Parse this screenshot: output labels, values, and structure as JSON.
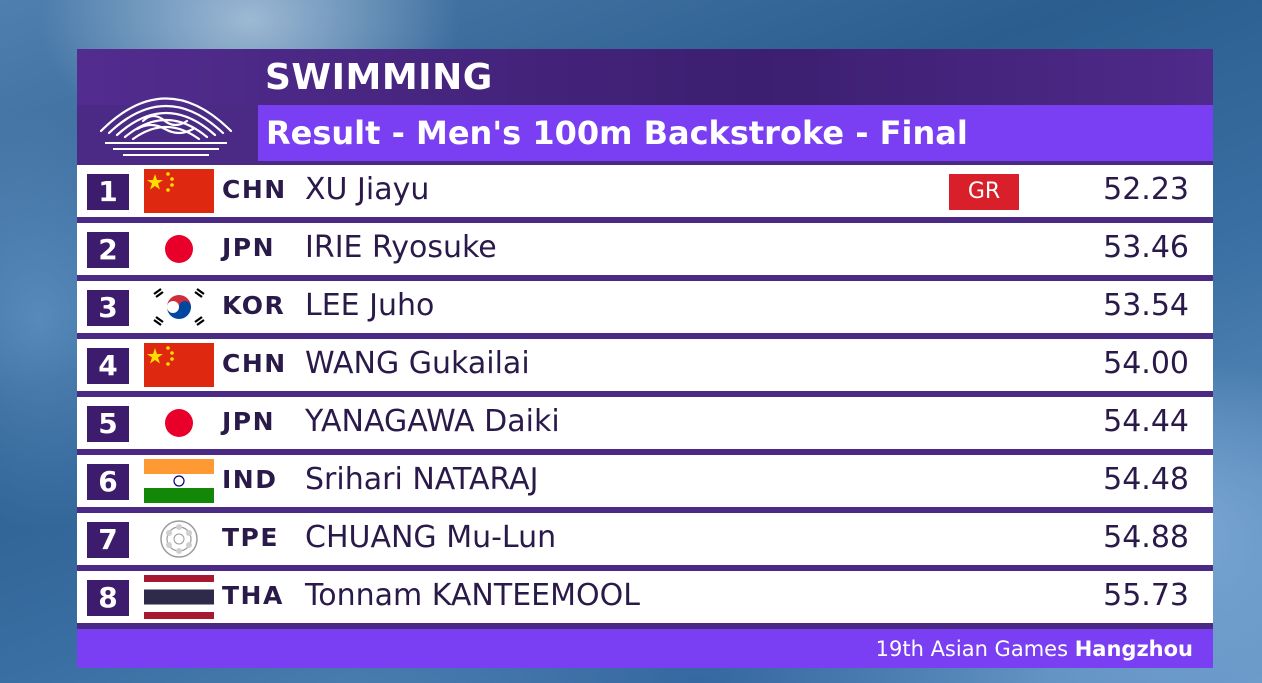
{
  "header": {
    "sport": "SWIMMING",
    "event": "Result - Men's 100m Backstroke - Final"
  },
  "results": [
    {
      "rank": "1",
      "code": "CHN",
      "name": "XU Jiayu",
      "record": "GR",
      "time": "52.23",
      "flag_icon": "china-flag-icon"
    },
    {
      "rank": "2",
      "code": "JPN",
      "name": "IRIE Ryosuke",
      "record": "",
      "time": "53.46",
      "flag_icon": "japan-flag-icon"
    },
    {
      "rank": "3",
      "code": "KOR",
      "name": "LEE Juho",
      "record": "",
      "time": "53.54",
      "flag_icon": "korea-flag-icon"
    },
    {
      "rank": "4",
      "code": "CHN",
      "name": "WANG Gukailai",
      "record": "",
      "time": "54.00",
      "flag_icon": "china-flag-icon"
    },
    {
      "rank": "5",
      "code": "JPN",
      "name": "YANAGAWA Daiki",
      "record": "",
      "time": "54.44",
      "flag_icon": "japan-flag-icon"
    },
    {
      "rank": "6",
      "code": "IND",
      "name": "Srihari NATARAJ",
      "record": "",
      "time": "54.48",
      "flag_icon": "india-flag-icon"
    },
    {
      "rank": "7",
      "code": "TPE",
      "name": "CHUANG Mu-Lun",
      "record": "",
      "time": "54.88",
      "flag_icon": "chinese-taipei-flag-icon"
    },
    {
      "rank": "8",
      "code": "THA",
      "name": "Tonnam KANTEEMOOL",
      "record": "",
      "time": "55.73",
      "flag_icon": "thailand-flag-icon"
    }
  ],
  "footer": {
    "prefix": "19th Asian Games",
    "city": "Hangzhou"
  },
  "colors": {
    "panel": "#4a2a85",
    "accent": "#7a3ff2",
    "rank_box": "#3d1c6e",
    "record_badge": "#d91f2a"
  },
  "logo_icon": "hangzhou-2022-emblem-icon"
}
